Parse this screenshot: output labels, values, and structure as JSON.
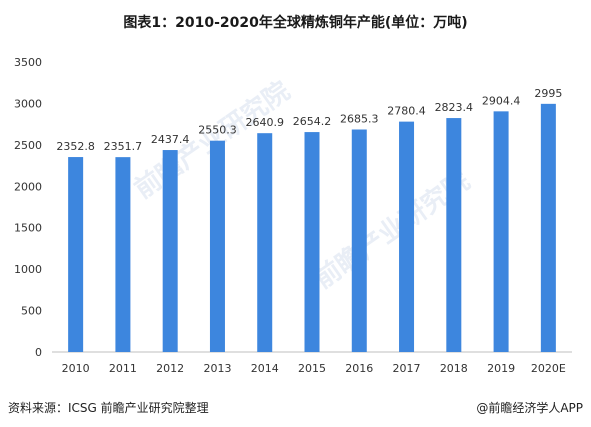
{
  "title": "图表1：2010-2020年全球精炼铜年产能(单位：万吨)",
  "footer": {
    "source": "资料来源：ICSG 前瞻产业研究院整理",
    "brand": "@前瞻经济学人APP"
  },
  "watermark": "前瞻产业研究院",
  "colors": {
    "bar": "#3d86de",
    "axis": "#bfbfbf",
    "text": "#333333"
  },
  "chart_data": {
    "type": "bar",
    "categories": [
      "2010",
      "2011",
      "2012",
      "2013",
      "2014",
      "2015",
      "2016",
      "2017",
      "2018",
      "2019",
      "2020E"
    ],
    "values": [
      2352.8,
      2351.7,
      2437.4,
      2550.3,
      2640.9,
      2654.2,
      2685.3,
      2780.4,
      2823.4,
      2904.4,
      2995
    ],
    "labels": [
      "2352.8",
      "2351.7",
      "2437.4",
      "2550.3",
      "2640.9",
      "2654.2",
      "2685.3",
      "2780.4",
      "2823.4",
      "2904.4",
      "2995"
    ],
    "yticks": [
      "0",
      "500",
      "1000",
      "1500",
      "2000",
      "2500",
      "3000",
      "3500"
    ],
    "ylim": [
      0,
      3500
    ],
    "grid": false,
    "legend": "none"
  }
}
